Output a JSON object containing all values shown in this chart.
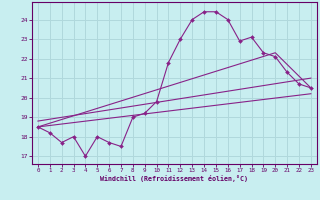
{
  "xlabel": "Windchill (Refroidissement éolien,°C)",
  "background_color": "#c8eef0",
  "grid_color": "#b0d8dc",
  "line_color": "#882288",
  "x_hours": [
    0,
    1,
    2,
    3,
    4,
    5,
    6,
    7,
    8,
    9,
    10,
    11,
    12,
    13,
    14,
    15,
    16,
    17,
    18,
    19,
    20,
    21,
    22,
    23
  ],
  "y_temp": [
    18.5,
    18.2,
    17.7,
    18.0,
    17.0,
    18.0,
    17.7,
    17.5,
    19.0,
    19.2,
    19.8,
    21.8,
    23.0,
    24.0,
    24.4,
    24.4,
    24.0,
    22.9,
    23.1,
    22.3,
    22.1,
    21.3,
    20.7,
    20.5
  ],
  "ylim": [
    16.6,
    24.9
  ],
  "xlim": [
    -0.5,
    23.5
  ],
  "yticks": [
    17,
    18,
    19,
    20,
    21,
    22,
    23,
    24
  ],
  "xticks": [
    0,
    1,
    2,
    3,
    4,
    5,
    6,
    7,
    8,
    9,
    10,
    11,
    12,
    13,
    14,
    15,
    16,
    17,
    18,
    19,
    20,
    21,
    22,
    23
  ],
  "straight_lines": [
    {
      "x": [
        0,
        23
      ],
      "y": [
        18.5,
        20.2
      ]
    },
    {
      "x": [
        0,
        23
      ],
      "y": [
        18.8,
        21.0
      ]
    },
    {
      "x": [
        0,
        20,
        23
      ],
      "y": [
        18.5,
        22.3,
        20.5
      ]
    }
  ]
}
